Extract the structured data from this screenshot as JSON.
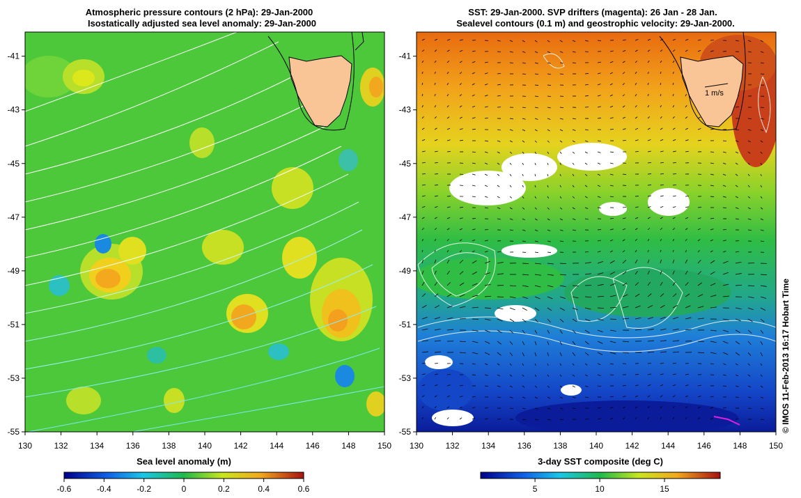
{
  "left_panel": {
    "title_line1": "Atmospheric pressure contours (2 hPa): 29-Jan-2000",
    "title_line2": "Isostatically adjusted sea level anomaly: 29-Jan-2000",
    "colorbar_label": "Sea level anomaly (m)",
    "colorbar_ticks": [
      "-0.6",
      "-0.4",
      "-0.2",
      "0",
      "0.2",
      "0.4",
      "0.6"
    ]
  },
  "right_panel": {
    "title_line1": "SST: 29-Jan-2000. SVP drifters (magenta): 26 Jan - 28 Jan.",
    "title_line2": "Sealevel contours (0.1 m) and geostrophic velocity: 29-Jan-2000.",
    "colorbar_label": "3-day SST composite (deg C)",
    "colorbar_ticks": [
      "5",
      "10",
      "15"
    ],
    "velocity_scale_label": "1 m/s"
  },
  "axes": {
    "lat_ticks": [
      "-41",
      "-43",
      "-45",
      "-47",
      "-49",
      "-51",
      "-53",
      "-55"
    ],
    "lon_ticks": [
      "130",
      "132",
      "134",
      "136",
      "138",
      "140",
      "142",
      "144",
      "146",
      "148",
      "150"
    ],
    "lat_range": [
      -55,
      -40
    ],
    "lon_range": [
      130,
      150
    ]
  },
  "credit": "© IMOS 11-Feb-2013 16:17 Hobart Time",
  "colors": {
    "land": "#f9c596",
    "left_background": "#4cc83a",
    "right_warm": "#f08a18"
  }
}
